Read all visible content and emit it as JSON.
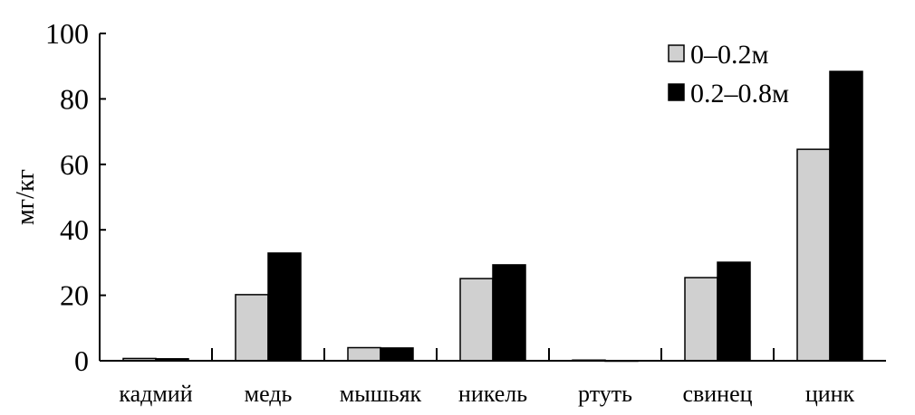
{
  "chart_data": {
    "type": "bar",
    "title": "",
    "xlabel": "",
    "ylabel": "мг/кг",
    "ylim": [
      0,
      100
    ],
    "yticks": [
      "0",
      "20",
      "40",
      "60",
      "80",
      "100"
    ],
    "grid": false,
    "legend_position": "top-right",
    "categories": [
      "кадмий",
      "медь",
      "мышьяк",
      "никель",
      "ртуть",
      "свинец",
      "цинк"
    ],
    "series": [
      {
        "name": "0–0.2м",
        "color": "#d0d0d0",
        "values": [
          0.7,
          20.2,
          4.0,
          25.1,
          0.2,
          25.4,
          64.6
        ]
      },
      {
        "name": "0.2–0.8м",
        "color": "#000000",
        "values": [
          0.6,
          32.9,
          3.9,
          29.3,
          0.0,
          30.1,
          88.4
        ]
      }
    ]
  }
}
